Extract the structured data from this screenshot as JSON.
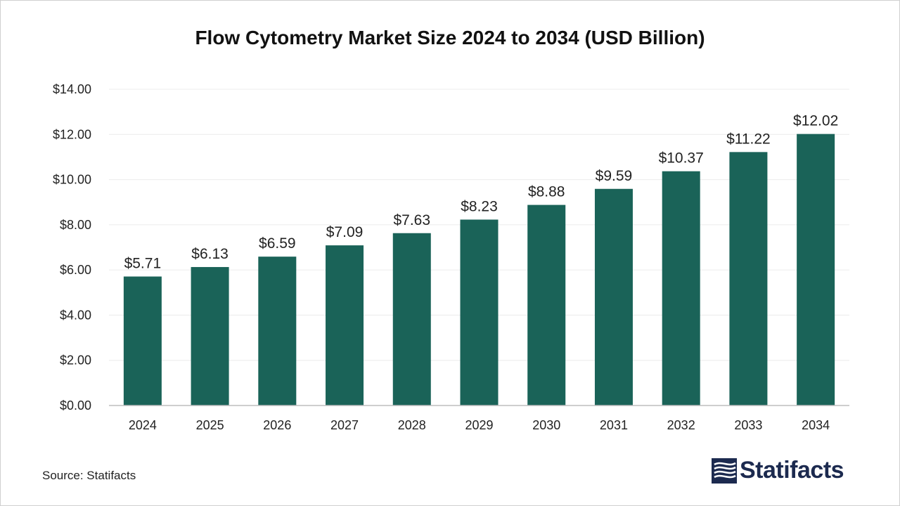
{
  "colors": {
    "bar": "#1a6358",
    "grid": "#ececec",
    "axis": "#bdbdbd",
    "text": "#222222",
    "logo": "#1c2a4f"
  },
  "source": "Source: Statifacts",
  "logo": {
    "name": "Statifacts",
    "icon": "statifacts-logo-icon"
  },
  "chart_data": {
    "type": "bar",
    "title": "Flow Cytometry Market Size 2024 to 2034 (USD Billion)",
    "xlabel": "",
    "ylabel": "",
    "categories": [
      "2024",
      "2025",
      "2026",
      "2027",
      "2028",
      "2029",
      "2030",
      "2031",
      "2032",
      "2033",
      "2034"
    ],
    "values": [
      5.71,
      6.13,
      6.59,
      7.09,
      7.63,
      8.23,
      8.88,
      9.59,
      10.37,
      11.22,
      12.02
    ],
    "value_labels": [
      "$5.71",
      "$6.13",
      "$6.59",
      "$7.09",
      "$7.63",
      "$8.23",
      "$8.88",
      "$9.59",
      "$10.37",
      "$11.22",
      "$12.02"
    ],
    "ylim": [
      0,
      14
    ],
    "yticks": [
      0,
      2,
      4,
      6,
      8,
      10,
      12,
      14
    ],
    "ytick_labels": [
      "$0.00",
      "$2.00",
      "$4.00",
      "$6.00",
      "$8.00",
      "$10.00",
      "$12.00",
      "$14.00"
    ],
    "grid": true,
    "legend": "none"
  }
}
